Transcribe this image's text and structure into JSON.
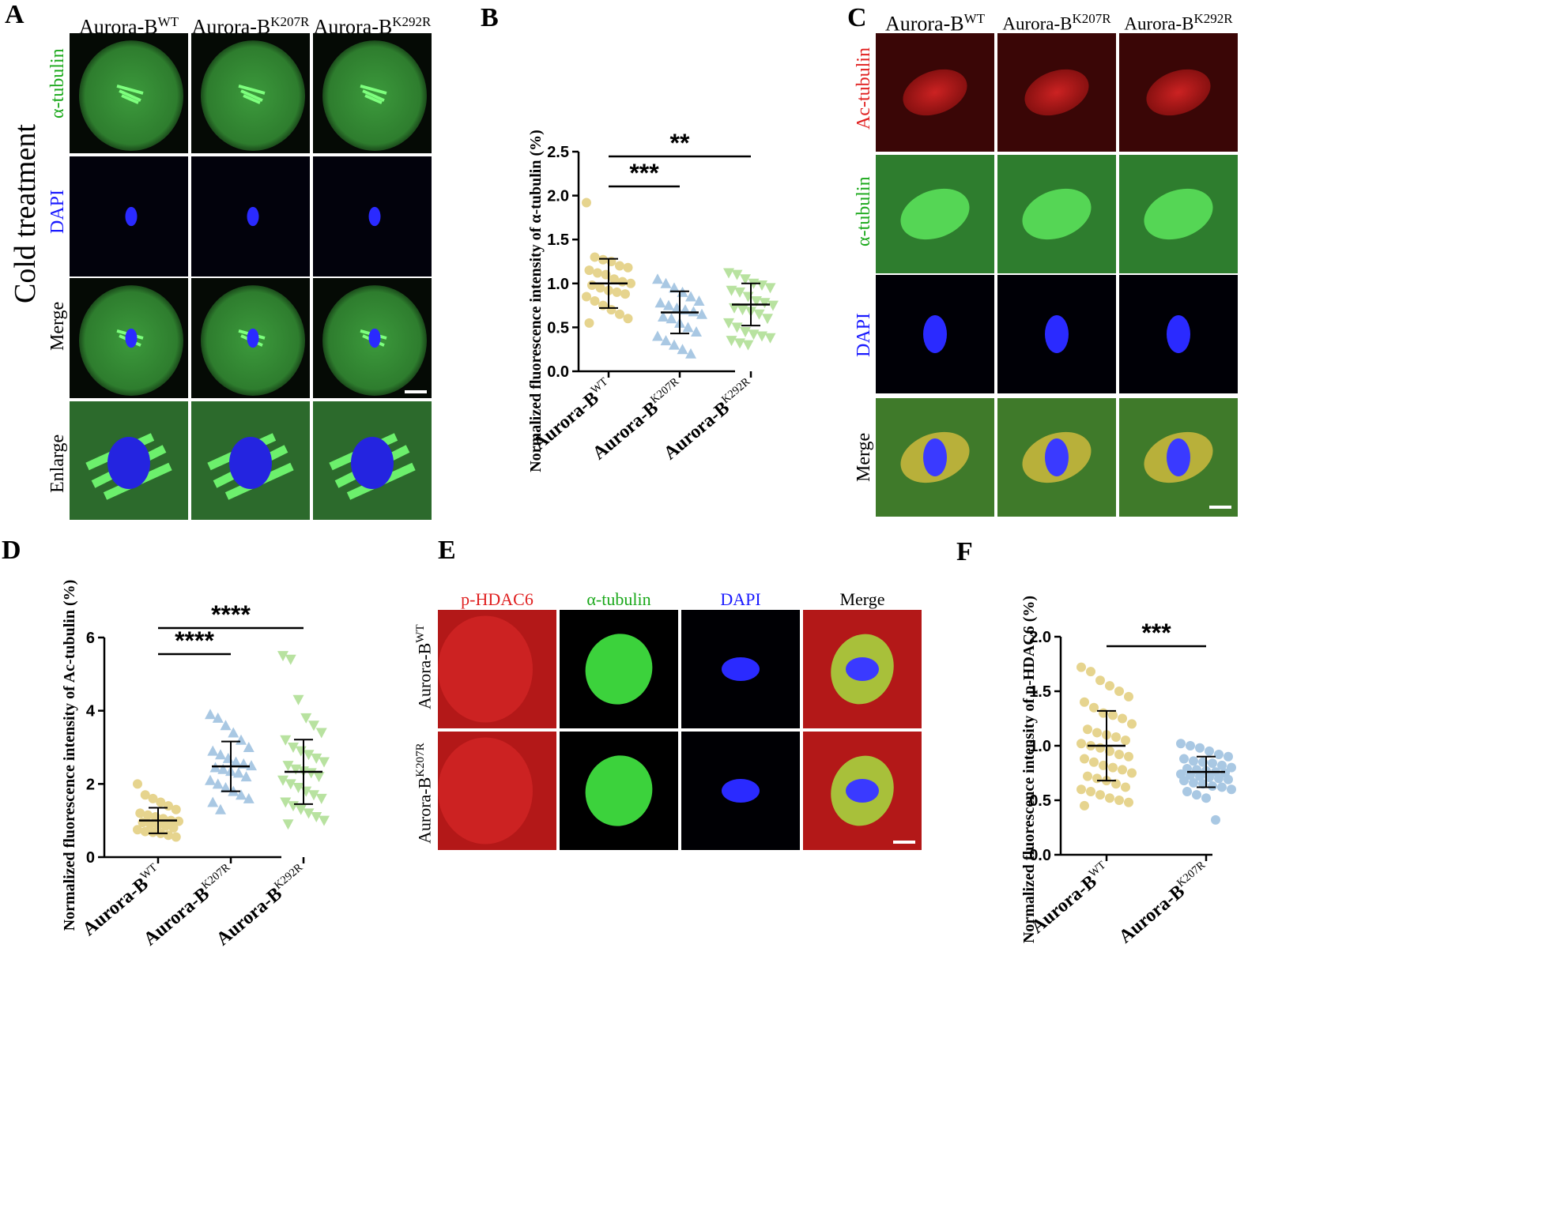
{
  "labels": {
    "A": "A",
    "B": "B",
    "C": "C",
    "D": "D",
    "E": "E",
    "F": "F"
  },
  "panelA": {
    "side_label": "Cold treatment",
    "columns": [
      {
        "base": "Aurora-B",
        "sup": "WT"
      },
      {
        "base": "Aurora-B",
        "sup": "K207R"
      },
      {
        "base": "Aurora-B",
        "sup": "K292R"
      }
    ],
    "rows": [
      "α-tubulin",
      "DAPI",
      "Merge",
      "Enlarge"
    ],
    "row_colors": [
      "#1aa81a",
      "#1a1aff",
      "#000000",
      "#000000"
    ]
  },
  "panelC": {
    "columns": [
      {
        "base": "Aurora-B",
        "sup": "WT"
      },
      {
        "base": "Aurora-B",
        "sup": "K207R"
      },
      {
        "base": "Aurora-B",
        "sup": "K292R"
      }
    ],
    "rows": [
      "Ac-tubulin",
      "α-tubulin",
      "DAPI",
      "Merge"
    ],
    "row_colors": [
      "#e02020",
      "#1aa81a",
      "#1a1aff",
      "#000000"
    ]
  },
  "panelE": {
    "columns": [
      "p-HDAC6",
      "α-tubulin",
      "DAPI",
      "Merge"
    ],
    "column_colors": [
      "#e02020",
      "#1aa81a",
      "#1a1aff",
      "#000000"
    ],
    "rows": [
      {
        "base": "Aurora-B",
        "sup": "WT"
      },
      {
        "base": "Aurora-B",
        "sup": "K207R"
      }
    ]
  },
  "chart_data": [
    {
      "id": "B",
      "type": "scatter",
      "ylabel": "Normalized fluorescence intensity of α-tubulin (%)",
      "ylim": [
        0,
        2.5
      ],
      "yticks": [
        "0.0",
        "0.5",
        "1.0",
        "1.5",
        "2.0",
        "2.5"
      ],
      "categories": [
        {
          "base": "Aurora-B",
          "sup": "WT"
        },
        {
          "base": "Aurora-B",
          "sup": "K207R"
        },
        {
          "base": "Aurora-B",
          "sup": "K292R"
        }
      ],
      "series": [
        {
          "color": "#e6d48e",
          "marker": "circle",
          "mean": 1.0,
          "sd": 0.28,
          "values": [
            1.92,
            1.3,
            1.27,
            1.25,
            1.2,
            1.18,
            1.15,
            1.12,
            1.1,
            1.05,
            1.02,
            1.0,
            0.98,
            0.95,
            0.92,
            0.9,
            0.88,
            0.85,
            0.8,
            0.75,
            0.7,
            0.65,
            0.6,
            0.55
          ]
        },
        {
          "color": "#a9c8e3",
          "marker": "triangle-up",
          "mean": 0.67,
          "sd": 0.24,
          "values": [
            1.05,
            1.0,
            0.95,
            0.9,
            0.85,
            0.8,
            0.78,
            0.75,
            0.72,
            0.7,
            0.68,
            0.65,
            0.62,
            0.6,
            0.55,
            0.5,
            0.45,
            0.4,
            0.35,
            0.3,
            0.25,
            0.2
          ]
        },
        {
          "color": "#b8e2a0",
          "marker": "triangle-down",
          "mean": 0.76,
          "sd": 0.24,
          "values": [
            1.12,
            1.1,
            1.05,
            1.0,
            0.98,
            0.95,
            0.92,
            0.9,
            0.85,
            0.8,
            0.78,
            0.75,
            0.72,
            0.7,
            0.68,
            0.65,
            0.6,
            0.55,
            0.5,
            0.45,
            0.42,
            0.4,
            0.38,
            0.35,
            0.32,
            0.3
          ]
        }
      ],
      "significance": [
        {
          "from": 0,
          "to": 1,
          "label": "***"
        },
        {
          "from": 0,
          "to": 2,
          "label": "**"
        }
      ]
    },
    {
      "id": "D",
      "type": "scatter",
      "ylabel": "Normalized fluorescence intensity of Ac-tubulin (%)",
      "ylim": [
        0,
        6
      ],
      "yticks": [
        "0",
        "2",
        "4",
        "6"
      ],
      "categories": [
        {
          "base": "Aurora-B",
          "sup": "WT"
        },
        {
          "base": "Aurora-B",
          "sup": "K207R"
        },
        {
          "base": "Aurora-B",
          "sup": "K292R"
        }
      ],
      "series": [
        {
          "color": "#e6d48e",
          "marker": "circle",
          "mean": 1.0,
          "sd": 0.35,
          "values": [
            2.0,
            1.7,
            1.6,
            1.5,
            1.4,
            1.3,
            1.2,
            1.15,
            1.1,
            1.05,
            1.0,
            0.98,
            0.95,
            0.9,
            0.88,
            0.85,
            0.8,
            0.75,
            0.7,
            0.68,
            0.65,
            0.6,
            0.55
          ]
        },
        {
          "color": "#a9c8e3",
          "marker": "triangle-up",
          "mean": 2.48,
          "sd": 0.68,
          "values": [
            3.9,
            3.8,
            3.6,
            3.4,
            3.2,
            3.0,
            2.9,
            2.8,
            2.7,
            2.6,
            2.55,
            2.5,
            2.45,
            2.4,
            2.35,
            2.3,
            2.2,
            2.1,
            2.0,
            1.9,
            1.8,
            1.7,
            1.6,
            1.5,
            1.3
          ]
        },
        {
          "color": "#b8e2a0",
          "marker": "triangle-down",
          "mean": 2.33,
          "sd": 0.88,
          "values": [
            5.5,
            5.4,
            4.3,
            3.8,
            3.6,
            3.4,
            3.2,
            3.0,
            2.9,
            2.8,
            2.7,
            2.6,
            2.5,
            2.4,
            2.35,
            2.3,
            2.2,
            2.1,
            2.0,
            1.9,
            1.8,
            1.7,
            1.6,
            1.5,
            1.4,
            1.3,
            1.2,
            1.1,
            1.0,
            0.9
          ]
        }
      ],
      "significance": [
        {
          "from": 0,
          "to": 1,
          "label": "****"
        },
        {
          "from": 0,
          "to": 2,
          "label": "****"
        }
      ]
    },
    {
      "id": "F",
      "type": "scatter",
      "ylabel": "Normalized fluorescence intensity of p-HDAC6 (%)",
      "ylim": [
        0,
        2.0
      ],
      "yticks": [
        "0.0",
        "0.5",
        "1.0",
        "1.5",
        "2.0"
      ],
      "categories": [
        {
          "base": "Aurora-B",
          "sup": "WT"
        },
        {
          "base": "Aurora-B",
          "sup": "K207R"
        }
      ],
      "series": [
        {
          "color": "#e6d48e",
          "marker": "circle",
          "mean": 1.0,
          "sd": 0.32,
          "values": [
            1.72,
            1.68,
            1.6,
            1.55,
            1.5,
            1.45,
            1.4,
            1.35,
            1.3,
            1.28,
            1.25,
            1.2,
            1.15,
            1.12,
            1.1,
            1.08,
            1.05,
            1.02,
            1.0,
            0.98,
            0.95,
            0.92,
            0.9,
            0.88,
            0.85,
            0.82,
            0.8,
            0.78,
            0.75,
            0.72,
            0.7,
            0.68,
            0.65,
            0.62,
            0.6,
            0.58,
            0.55,
            0.52,
            0.5,
            0.48,
            0.45
          ]
        },
        {
          "color": "#a9c8e3",
          "marker": "circle",
          "mean": 0.76,
          "sd": 0.14,
          "values": [
            1.02,
            1.0,
            0.98,
            0.95,
            0.92,
            0.9,
            0.88,
            0.86,
            0.85,
            0.84,
            0.82,
            0.8,
            0.79,
            0.78,
            0.77,
            0.76,
            0.75,
            0.74,
            0.73,
            0.72,
            0.71,
            0.7,
            0.69,
            0.68,
            0.66,
            0.65,
            0.63,
            0.62,
            0.6,
            0.58,
            0.55,
            0.52,
            0.32
          ]
        }
      ],
      "significance": [
        {
          "from": 0,
          "to": 1,
          "label": "***"
        }
      ]
    }
  ]
}
